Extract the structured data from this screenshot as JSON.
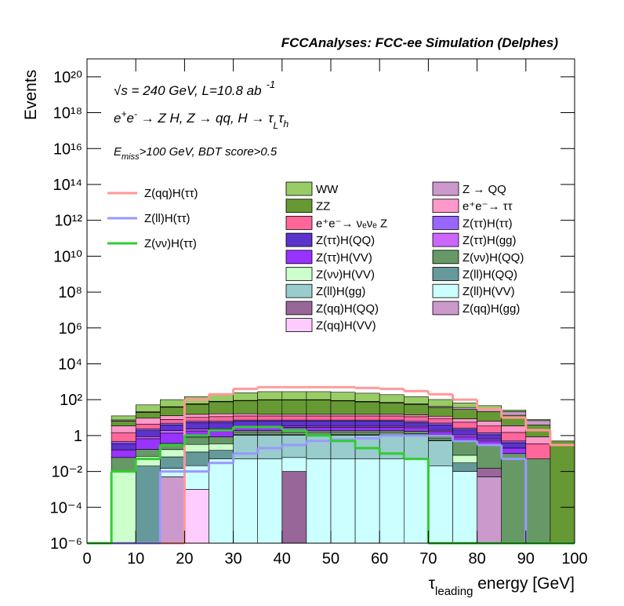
{
  "chart_data": {
    "type": "stacked_histogram",
    "title": "FCCAnalyses: FCC-ee Simulation (Delphes)",
    "y_label": "Events",
    "x_label": [
      "τ",
      "leading",
      " energy [GeV]"
    ],
    "annotations": [
      [
        "√s = 240 GeV, L=10.8 ab",
        "-1"
      ],
      [
        "e",
        "+",
        "e",
        "-",
        " → Z H, Z  → qq, H  →  τ",
        "L",
        "τ",
        "h"
      ],
      [
        "E",
        "miss",
        ">100 GeV, BDT score>0.5"
      ]
    ],
    "log_y": true,
    "bins": [
      0,
      5,
      10,
      15,
      20,
      25,
      30,
      35,
      40,
      45,
      50,
      55,
      60,
      65,
      70,
      75,
      80,
      85,
      90,
      95,
      100
    ],
    "xlim": [
      0,
      100
    ],
    "xticks": [
      0,
      10,
      20,
      30,
      40,
      50,
      60,
      70,
      80,
      90,
      100
    ],
    "ylim": [
      1e-06,
      1e+21
    ],
    "yticks": [
      {
        "value": 1e-06,
        "label": "10⁻⁶"
      },
      {
        "value": 0.0001,
        "label": "10⁻⁴"
      },
      {
        "value": 0.01,
        "label": "10⁻²"
      },
      1,
      {
        "value": 100,
        "label": "10²"
      },
      {
        "value": 10000,
        "label": "10⁴"
      },
      {
        "value": 1000000.0,
        "label": "10⁶"
      },
      {
        "value": 100000000.0,
        "label": "10⁸"
      },
      {
        "value": 10000000000.0,
        "label": "10¹⁰"
      },
      {
        "value": 1000000000000.0,
        "label": "10¹²"
      },
      {
        "value": 100000000000000.0,
        "label": "10¹⁴"
      },
      {
        "value": 1e+16,
        "label": "10¹⁶"
      },
      {
        "value": 1e+18,
        "label": "10¹⁸"
      },
      {
        "value": 1e+20,
        "label": "10²⁰"
      }
    ],
    "series": [
      {
        "name": "WW",
        "color": "#99cc66",
        "values": [
          0,
          5,
          30,
          60,
          90,
          120,
          150,
          180,
          180,
          180,
          170,
          150,
          120,
          90,
          60,
          30,
          15,
          5,
          1,
          0
        ]
      },
      {
        "name": "Z → QQ",
        "color": "#cc99cc",
        "values": [
          0,
          1,
          2,
          3,
          4,
          5,
          5,
          5,
          5,
          5,
          5,
          5,
          5,
          5,
          5,
          8,
          10,
          8,
          3,
          0
        ]
      },
      {
        "name": "ZZ",
        "color": "#669933",
        "values": [
          0,
          3,
          10,
          25,
          40,
          60,
          70,
          80,
          80,
          80,
          70,
          60,
          50,
          40,
          25,
          20,
          15,
          10,
          3,
          0.5
        ]
      },
      {
        "name": "e⁺e⁻→ ττ",
        "color": "#ff99cc",
        "values": [
          0,
          2,
          5,
          5,
          5,
          5,
          4,
          3,
          3,
          3,
          3,
          3,
          3,
          3,
          3,
          3,
          3,
          2,
          0.5,
          0
        ]
      },
      {
        "name": "e⁺e⁻→ νₑνₑ Z",
        "color": "#ff6699",
        "values": [
          0,
          1,
          2,
          3,
          4,
          5,
          5,
          5,
          5,
          5,
          5,
          5,
          5,
          5,
          4,
          3,
          2,
          1,
          0.3,
          0
        ]
      },
      {
        "name": "Z(ττ)H(ττ)",
        "color": "#9966ff",
        "values": [
          0,
          0.1,
          0.5,
          1,
          1,
          1,
          1,
          1,
          1,
          1,
          1,
          1,
          1,
          1,
          1,
          0.5,
          0.3,
          0.1,
          0,
          0
        ]
      },
      {
        "name": "Z(ττ)H(QQ)",
        "color": "#5c33cc",
        "values": [
          0,
          0.2,
          1,
          2,
          3,
          3,
          3,
          3,
          3,
          3,
          3,
          3,
          3,
          2,
          2,
          1,
          0.5,
          0.2,
          0,
          0
        ]
      },
      {
        "name": "Z(ττ)H(gg)",
        "color": "#cc66ff",
        "values": [
          0,
          0,
          0.2,
          0.5,
          0.5,
          0.5,
          0.5,
          0.5,
          0.5,
          0.5,
          0.5,
          0.5,
          0.5,
          0.5,
          0.3,
          0.2,
          0.1,
          0,
          0,
          0
        ]
      },
      {
        "name": "Z(ττ)H(VV)",
        "color": "#9933ff",
        "values": [
          0,
          0.1,
          0.5,
          1,
          1,
          1,
          1,
          1,
          1,
          1,
          1,
          1,
          1,
          1,
          0.5,
          0.3,
          0.2,
          0.1,
          0,
          0
        ]
      },
      {
        "name": "Z(νν)H(QQ)",
        "color": "#669966",
        "values": [
          0,
          0.05,
          0.1,
          0.2,
          0.5,
          0.5,
          0.5,
          0.5,
          0.5,
          0.5,
          0.5,
          0.5,
          0.5,
          0.5,
          0.5,
          0.5,
          0.3,
          0.1,
          0.05,
          0
        ]
      },
      {
        "name": "Z(νν)H(VV)",
        "color": "#ccffcc",
        "values": [
          0,
          0.01,
          0.05,
          0.1,
          0.2,
          0.2,
          0.2,
          0.2,
          0.2,
          0.2,
          0.2,
          0.2,
          0.2,
          0.1,
          0.1,
          0.05,
          0,
          0,
          0,
          0
        ]
      },
      {
        "name": "Z(ll)H(QQ)",
        "color": "#669999",
        "values": [
          0,
          0,
          0.02,
          0.05,
          0.1,
          0.1,
          0.1,
          0.1,
          0.1,
          0.1,
          0.1,
          0.1,
          0.1,
          0.1,
          0.05,
          0.02,
          0,
          0,
          0,
          0
        ]
      },
      {
        "name": "Z(ll)H(gg)",
        "color": "#99cccc",
        "values": [
          0,
          0,
          0,
          0,
          0,
          0,
          1,
          1,
          1,
          1,
          1,
          1,
          1,
          1,
          0.5,
          0,
          0,
          0,
          0,
          0
        ]
      },
      {
        "name": "Z(ll)H(VV)",
        "color": "#ccffff",
        "values": [
          0,
          0,
          0,
          0.01,
          0.02,
          0.05,
          0.05,
          0.05,
          0.05,
          0.05,
          0.05,
          0.05,
          0.05,
          0.05,
          0.02,
          0.01,
          0,
          0,
          0,
          0
        ]
      },
      {
        "name": "Z(qq)H(QQ)",
        "color": "#996699",
        "values": [
          0,
          0,
          0,
          0,
          0,
          0,
          0,
          0,
          0.01,
          0,
          0,
          0,
          0,
          0,
          0,
          0,
          0.01,
          0,
          0,
          0
        ]
      },
      {
        "name": "Z(qq)H(gg)",
        "color": "#cc99cc",
        "values": [
          0,
          0,
          0,
          0.005,
          0,
          0,
          0,
          0,
          0,
          0,
          0,
          0,
          0,
          0,
          0,
          0,
          0.005,
          0,
          0,
          0
        ]
      },
      {
        "name": "Z(qq)H(VV)",
        "color": "#ffccff",
        "values": [
          0,
          0,
          0,
          0,
          0.001,
          0,
          0,
          0,
          0,
          0,
          0,
          0,
          0,
          0,
          0,
          0,
          0,
          0,
          0,
          0
        ]
      }
    ],
    "signals": [
      {
        "name": "Z(qq)H(ττ)",
        "color": "#ff9999",
        "values": [
          0,
          0,
          0,
          0,
          100,
          200,
          400,
          500,
          500,
          500,
          500,
          450,
          400,
          300,
          200,
          100,
          30,
          10,
          2,
          0.3
        ]
      },
      {
        "name": "Z(ll)H(ττ)",
        "color": "#9999ff",
        "values": [
          0,
          0,
          0,
          0.01,
          0.01,
          0.03,
          0.1,
          0.2,
          0.3,
          0.5,
          0.6,
          0.7,
          1,
          1,
          1,
          0.5,
          0.3,
          0.05,
          0,
          0
        ]
      },
      {
        "name": "Z(νν)H(ττ)",
        "color": "#33cc33",
        "values": [
          0,
          0.01,
          0.05,
          0.3,
          1,
          2,
          3,
          3,
          2,
          1,
          0.5,
          0.2,
          0.1,
          0.05,
          0,
          0,
          0,
          0,
          0,
          0
        ]
      }
    ]
  }
}
